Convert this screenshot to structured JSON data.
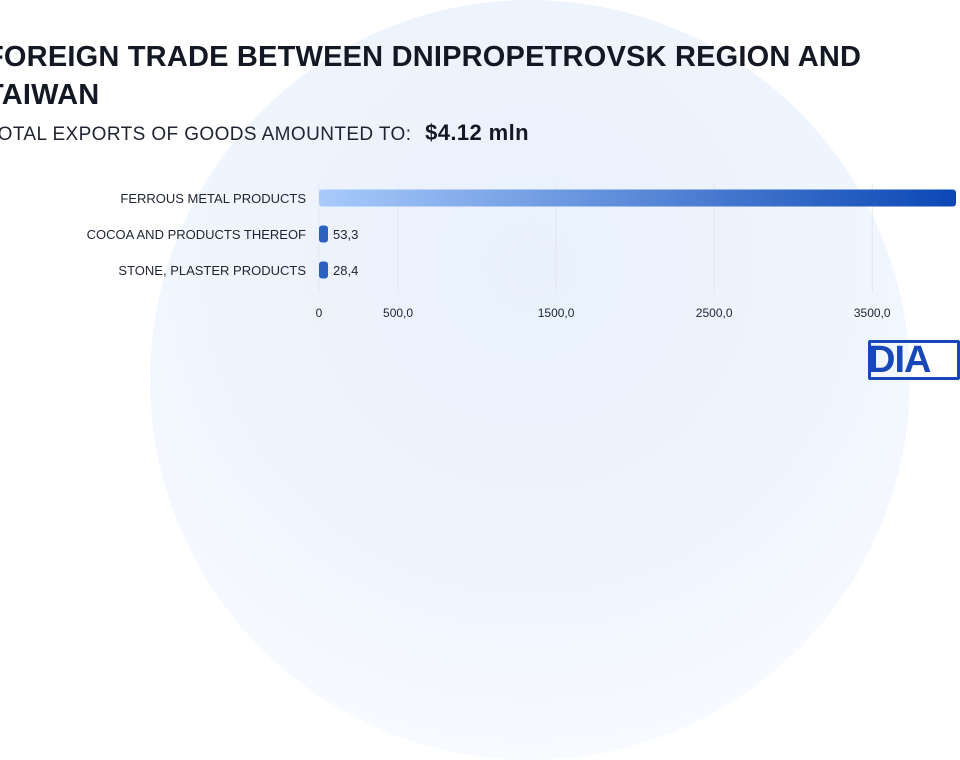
{
  "title": "FOREIGN TRADE BETWEEN DNIPROPETROVSK REGION AND TAIWAN",
  "subtitle": {
    "label": "TOTAL EXPORTS OF GOODS AMOUNTED TO:",
    "value": "$4.12 mln"
  },
  "logo": {
    "text": "DIA"
  },
  "colors": {
    "bar_start": "#a9cbfb",
    "bar_end": "#0b47b5",
    "grid": "#e3e7ef",
    "text": "#1f2430",
    "logo": "#1848b8"
  },
  "chart_data": {
    "type": "bar",
    "orientation": "horizontal",
    "categories": [
      "FERROUS METAL PRODUCTS",
      "COCOA AND PRODUCTS THEREOF",
      "STONE, PLASTER PRODUCTS"
    ],
    "values": [
      4030,
      53.3,
      28.4
    ],
    "value_labels": [
      "",
      "53,3",
      "28,4"
    ],
    "x_ticks": [
      0,
      500,
      1500,
      2500,
      3500
    ],
    "x_tick_labels": [
      "0",
      "500,0",
      "1500,0",
      "2500,0",
      "3500,0"
    ],
    "xlim": [
      0,
      4030
    ],
    "grid": true
  }
}
